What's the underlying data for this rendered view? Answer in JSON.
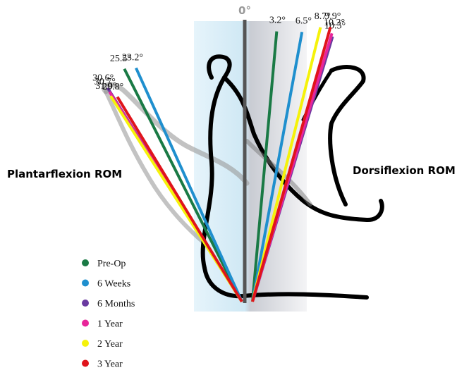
{
  "chart_data": {
    "type": "radial",
    "zero_label": "0°",
    "categories": [
      "Plantarflexion ROM",
      "Dorsiflexion ROM"
    ],
    "series": [
      {
        "name": "Pre-Op",
        "color": "#1a7a45",
        "values": [
          25.5,
          3.2
        ],
        "value_labels": [
          "25.5°",
          "3.2°"
        ]
      },
      {
        "name": "6 Weeks",
        "color": "#1f8fce",
        "values": [
          23.2,
          6.5
        ],
        "value_labels": [
          "23.2°",
          "6.5°"
        ]
      },
      {
        "name": "6 Months",
        "color": "#6a3aa0",
        "values": [
          30.6,
          10.5
        ],
        "value_labels": [
          "30.6°",
          "10.5°"
        ]
      },
      {
        "name": "1 Year",
        "color": "#e8259a",
        "values": [
          30.7,
          10.3
        ],
        "value_labels": [
          "30.7°",
          "10.3°"
        ]
      },
      {
        "name": "2 Year",
        "color": "#f5f20a",
        "values": [
          31.0,
          8.7
        ],
        "value_labels": [
          "31.0°",
          "8.7°"
        ]
      },
      {
        "name": "3 Year",
        "color": "#e0141c",
        "values": [
          29.8,
          9.9
        ],
        "value_labels": [
          "29.8°",
          "9.9°"
        ]
      }
    ]
  }
}
